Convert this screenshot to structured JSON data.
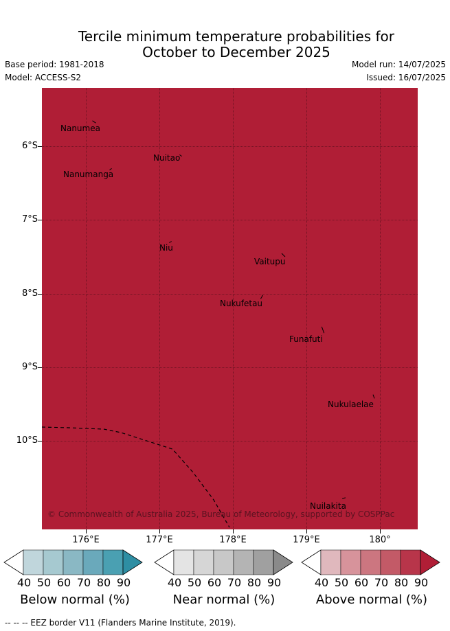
{
  "title": {
    "line1": "Tercile minimum temperature probabilities for",
    "line2": "October to December 2025"
  },
  "meta": {
    "base_period": "Base period: 1981-2018",
    "model": "Model: ACCESS-S2",
    "model_run": "Model run: 14/07/2025",
    "issued": "Issued: 16/07/2025"
  },
  "map": {
    "fill_color": "#b01e36",
    "latitude_labels": [
      "6°S",
      "7°S",
      "8°S",
      "9°S",
      "10°S"
    ],
    "longitude_labels": [
      "176°E",
      "177°E",
      "178°E",
      "179°E",
      "180°"
    ],
    "islands": [
      "Nanumea",
      "Nuitao",
      "Nanumanga",
      "Niu",
      "Vaitupu",
      "Nukufetau",
      "Funafuti",
      "Nukulaelae",
      "Nuilakita"
    ],
    "copyright": "© Commonwealth of Australia 2025, Bureau of Meteorology, supported by COSPPac"
  },
  "legend": {
    "ticks": [
      "40",
      "50",
      "60",
      "70",
      "80",
      "90"
    ],
    "below": {
      "label": "Below normal (%)",
      "colors": [
        "#ffffff",
        "#c0d6dc",
        "#a6c9d0",
        "#8ab8c4",
        "#6aa9bb",
        "#4aa0b2",
        "#2e8ea3"
      ]
    },
    "near": {
      "label": "Near normal (%)",
      "colors": [
        "#ffffff",
        "#e4e4e4",
        "#d6d6d6",
        "#c8c8c8",
        "#b4b4b4",
        "#a0a0a0",
        "#8a8a8a"
      ]
    },
    "above": {
      "label": "Above normal (%)",
      "colors": [
        "#ffffff",
        "#e0b8bd",
        "#d7939b",
        "#cc7680",
        "#c35a67",
        "#b8354a",
        "#b01e36"
      ]
    }
  },
  "footnote": "--  --  -- EEZ border V11 (Flanders Marine Institute, 2019)."
}
